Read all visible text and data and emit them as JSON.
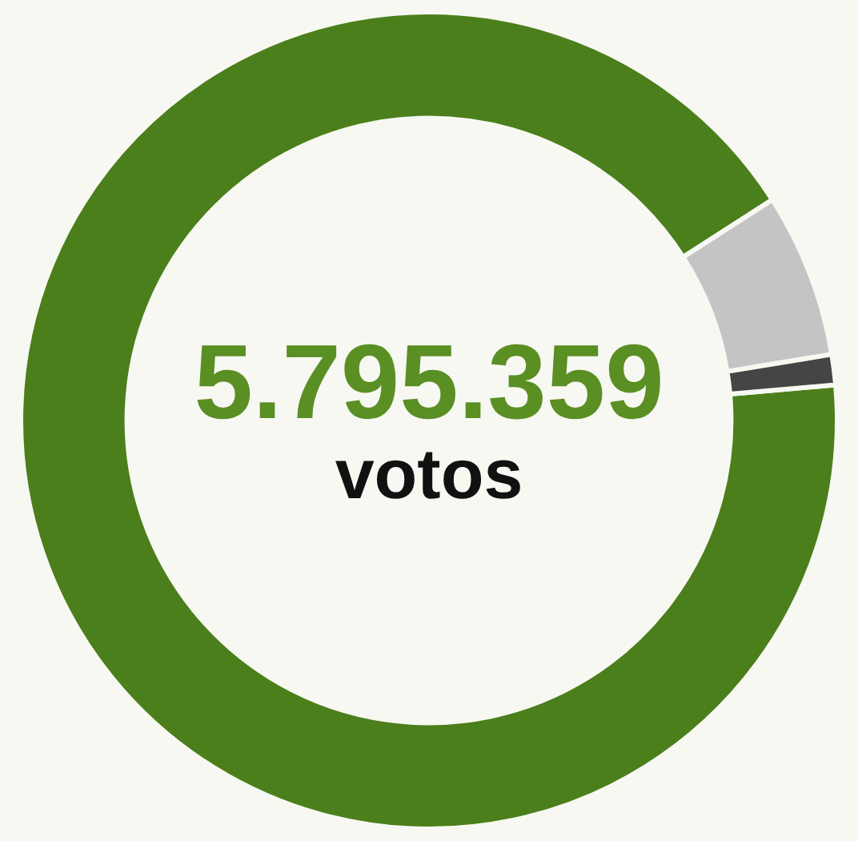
{
  "chart_data": {
    "type": "donut",
    "categories": [
      null,
      null,
      null
    ],
    "values": [
      92.3,
      6.5,
      1.2
    ],
    "colors": [
      "#4b7f1b",
      "#c4c4c4",
      "#454545"
    ],
    "annotations": [
      "5.795.359",
      "votos"
    ],
    "legend": false
  }
}
